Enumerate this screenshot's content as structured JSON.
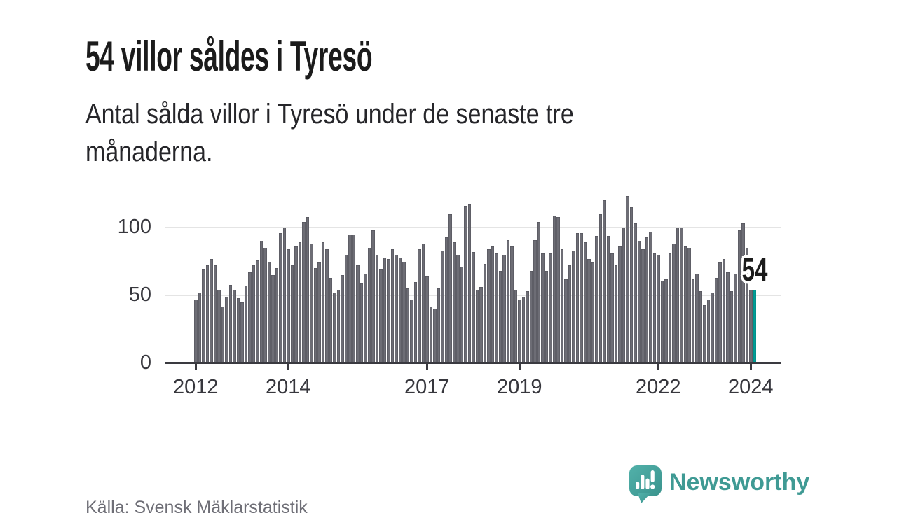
{
  "header": {
    "title": "54 villor såldes i Tyresö",
    "subtitle": "Antal sålda villor i Tyresö under de senaste tre månaderna."
  },
  "footer": {
    "source": "Källa: Svensk Mäklarstatistik",
    "brand": "Newsworthy"
  },
  "colors": {
    "bar": "#6d6d75",
    "highlight": "#009d96",
    "brand_teal": "#3f9a94",
    "axis": "#3a3a40",
    "grid": "#e4e4e4"
  },
  "chart_data": {
    "type": "bar",
    "title": "54 villor såldes i Tyresö",
    "xlabel": "",
    "ylabel": "",
    "grid": true,
    "legend": false,
    "ylim": [
      0,
      130
    ],
    "y_ticks": [
      0,
      50,
      100
    ],
    "x_tick_years": [
      2012,
      2014,
      2017,
      2019,
      2022,
      2024
    ],
    "start_year": 2012,
    "bars_per_year": 12,
    "highlight_index_from_end": 1,
    "highlight_label": "54",
    "values": [
      47,
      52,
      69,
      72,
      77,
      72,
      54,
      42,
      49,
      58,
      54,
      48,
      45,
      57,
      67,
      72,
      76,
      90,
      85,
      75,
      65,
      70,
      96,
      100,
      84,
      72,
      86,
      89,
      104,
      108,
      88,
      70,
      74,
      89,
      84,
      63,
      52,
      54,
      65,
      80,
      95,
      95,
      72,
      59,
      66,
      85,
      98,
      80,
      69,
      78,
      77,
      84,
      80,
      78,
      75,
      55,
      47,
      60,
      84,
      88,
      64,
      42,
      40,
      55,
      83,
      93,
      110,
      89,
      80,
      71,
      116,
      117,
      82,
      54,
      56,
      73,
      84,
      86,
      81,
      68,
      80,
      91,
      86,
      54,
      47,
      49,
      53,
      68,
      91,
      104,
      81,
      68,
      81,
      109,
      108,
      84,
      62,
      72,
      83,
      96,
      96,
      89,
      77,
      74,
      94,
      110,
      120,
      94,
      81,
      72,
      86,
      100,
      123,
      115,
      103,
      90,
      84,
      93,
      97,
      81,
      80,
      61,
      62,
      81,
      88,
      100,
      100,
      86,
      85,
      62,
      66,
      53,
      43,
      47,
      52,
      63,
      74,
      77,
      67,
      53,
      66,
      98,
      103,
      85,
      54,
      54
    ]
  }
}
